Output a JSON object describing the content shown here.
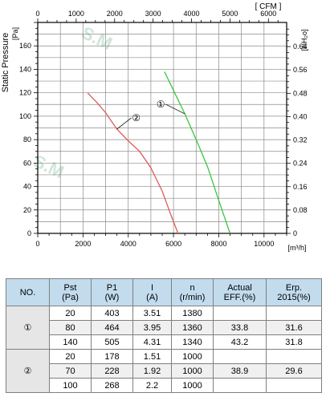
{
  "chart_data": {
    "type": "line",
    "top_axis_title": "[ CFM ]",
    "top_axis_ticks": [
      "0",
      "1000",
      "2000",
      "3000",
      "4000",
      "5000",
      "6000"
    ],
    "top_axis_values": [
      0,
      1000,
      2000,
      3000,
      4000,
      5000,
      6000
    ],
    "ylabel": "Static Pressure",
    "ylabel_unit": "[Pa]",
    "yticks": [
      "0",
      "20",
      "40",
      "60",
      "80",
      "100",
      "120",
      "140",
      "160"
    ],
    "ytick_values": [
      0,
      20,
      40,
      60,
      80,
      100,
      120,
      140,
      160
    ],
    "ylim": [
      0,
      180
    ],
    "right_axis_title": "[inH₂o]",
    "right_axis_ticks": [
      "0",
      "0.08",
      "0.16",
      "0.24",
      "0.32",
      "0.40",
      "0.48",
      "0.56",
      "0.64"
    ],
    "right_axis_values": [
      0,
      0.08,
      0.16,
      0.24,
      0.32,
      0.4,
      0.48,
      0.56,
      0.64
    ],
    "xlabel_unit": "[m³/h]",
    "xticks": [
      "0",
      "2000",
      "4000",
      "6000",
      "8000",
      "10000"
    ],
    "xtick_values": [
      0,
      2000,
      4000,
      6000,
      8000,
      10000
    ],
    "xlim": [
      0,
      11000
    ],
    "grid": true,
    "series": [
      {
        "name": "①",
        "color": "#3ec43e",
        "x": [
          5600,
          6000,
          6500,
          7000,
          7500,
          8000,
          8500
        ],
        "y": [
          138,
          122,
          102,
          80,
          57,
          28,
          0
        ]
      },
      {
        "name": "②",
        "color": "#e05a5a",
        "x": [
          2200,
          2600,
          3000,
          3500,
          4000,
          4500,
          5000,
          5500,
          5900,
          6200
        ],
        "y": [
          120,
          112,
          103,
          89,
          79,
          70,
          56,
          36,
          15,
          0
        ]
      }
    ]
  },
  "table": {
    "headers": [
      {
        "line1": "NO.",
        "line2": ""
      },
      {
        "line1": "Pst",
        "line2": "(Pa)"
      },
      {
        "line1": "P1",
        "line2": "(W)"
      },
      {
        "line1": "I",
        "line2": "(A)"
      },
      {
        "line1": "n",
        "line2": "(r/min)"
      },
      {
        "line1": "Actual",
        "line2": "EFF.(%)"
      },
      {
        "line1": "Erp.",
        "line2": "2015(%)"
      }
    ],
    "groups": [
      {
        "no": "①",
        "rows": [
          {
            "pst": "20",
            "p1": "403",
            "i": "3.51",
            "n": "1380",
            "eff": "",
            "erp": ""
          },
          {
            "pst": "80",
            "p1": "464",
            "i": "3.95",
            "n": "1360",
            "eff": "33.8",
            "erp": "31.6"
          },
          {
            "pst": "140",
            "p1": "505",
            "i": "4.31",
            "n": "1340",
            "eff": "43.2",
            "erp": "31.8"
          }
        ]
      },
      {
        "no": "②",
        "rows": [
          {
            "pst": "20",
            "p1": "178",
            "i": "1.51",
            "n": "1000",
            "eff": "",
            "erp": ""
          },
          {
            "pst": "70",
            "p1": "228",
            "i": "1.92",
            "n": "1000",
            "eff": "38.9",
            "erp": "29.6"
          },
          {
            "pst": "100",
            "p1": "268",
            "i": "2.2",
            "n": "1000",
            "eff": "",
            "erp": ""
          }
        ]
      }
    ]
  }
}
